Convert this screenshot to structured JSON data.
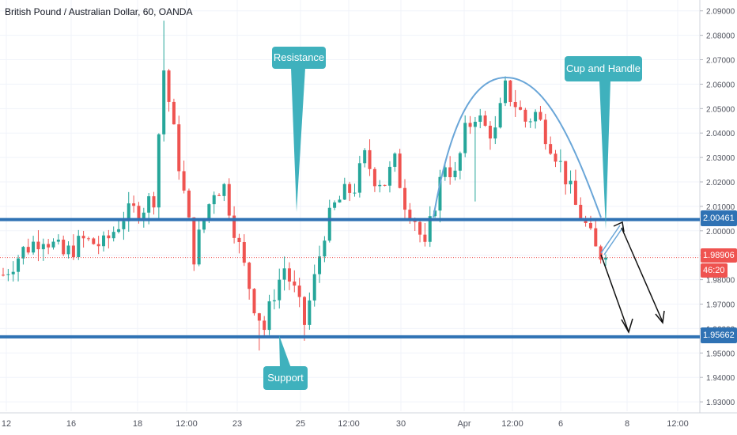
{
  "header": {
    "title": "British Pound / Australian Dollar, 60, OANDA"
  },
  "colors": {
    "up": "#26a69a",
    "down": "#ef5350",
    "level_line": "#2f72b4",
    "callout": "#3fb1bd",
    "cup": "#6aa6d8",
    "last_price_bg": "#ef5350",
    "timer_bg": "#ef5350",
    "level_badge_bg": "#2f72b4",
    "grid": "#f0f3fa",
    "axis_text": "#50535e"
  },
  "annotations": {
    "resistance": "Resistance",
    "support": "Support",
    "cup_handle": "Cup and Handle"
  },
  "badges": {
    "resistance_value": "2.00461",
    "support_value": "1.95662",
    "last_price": "1.98906",
    "countdown": "46:20"
  },
  "chart_data": {
    "type": "candlestick",
    "title": "British Pound / Australian Dollar, 60, OANDA",
    "y_axis": {
      "ticks": [
        "1.93000",
        "1.94000",
        "1.95000",
        "1.96000",
        "1.97000",
        "1.98000",
        "1.99000",
        "2.00000",
        "2.01000",
        "2.02000",
        "2.03000",
        "2.04000",
        "2.05000",
        "2.06000",
        "2.07000",
        "2.08000",
        "2.09000"
      ],
      "range": [
        1.9255,
        2.0925
      ]
    },
    "x_axis": {
      "ticks": [
        "12",
        "16",
        "18",
        "12:00",
        "23",
        "25",
        "12:00",
        "30",
        "Apr",
        "12:00",
        "6",
        "8",
        "12:00"
      ]
    },
    "levels": {
      "resistance": 2.00461,
      "support": 1.95662,
      "last_price": 1.98906
    },
    "price_path": [
      [
        0,
        1.982
      ],
      [
        4,
        1.992
      ],
      [
        8,
        1.998
      ],
      [
        12,
        1.99
      ],
      [
        16,
        1.996
      ],
      [
        20,
        1.994
      ],
      [
        24,
        2.006
      ],
      [
        28,
        2.01
      ],
      [
        30,
        2.014
      ],
      [
        32,
        2.066
      ],
      [
        34,
        2.04
      ],
      [
        36,
        2.015
      ],
      [
        38,
        1.99
      ],
      [
        40,
        2.005
      ],
      [
        42,
        2.017
      ],
      [
        44,
        2.018
      ],
      [
        48,
        1.985
      ],
      [
        50,
        1.97
      ],
      [
        52,
        1.96
      ],
      [
        54,
        1.975
      ],
      [
        56,
        1.985
      ],
      [
        58,
        1.975
      ],
      [
        60,
        1.962
      ],
      [
        62,
        1.98
      ],
      [
        64,
        2.0
      ],
      [
        66,
        2.01
      ],
      [
        68,
        2.015
      ],
      [
        70,
        2.018
      ],
      [
        72,
        2.03
      ],
      [
        74,
        2.022
      ],
      [
        76,
        2.02
      ],
      [
        78,
        2.028
      ],
      [
        80,
        2.012
      ],
      [
        82,
        2.005
      ],
      [
        84,
        1.992
      ],
      [
        86,
        2.012
      ],
      [
        88,
        2.028
      ],
      [
        90,
        2.022
      ],
      [
        92,
        2.04
      ],
      [
        94,
        2.048
      ],
      [
        96,
        2.042
      ],
      [
        98,
        2.04
      ],
      [
        100,
        2.058
      ],
      [
        102,
        2.052
      ],
      [
        104,
        2.045
      ],
      [
        106,
        2.048
      ],
      [
        108,
        2.04
      ],
      [
        110,
        2.032
      ],
      [
        112,
        2.022
      ],
      [
        114,
        2.01
      ],
      [
        116,
        2.002
      ],
      [
        118,
        1.992
      ],
      [
        120,
        1.989
      ]
    ]
  }
}
